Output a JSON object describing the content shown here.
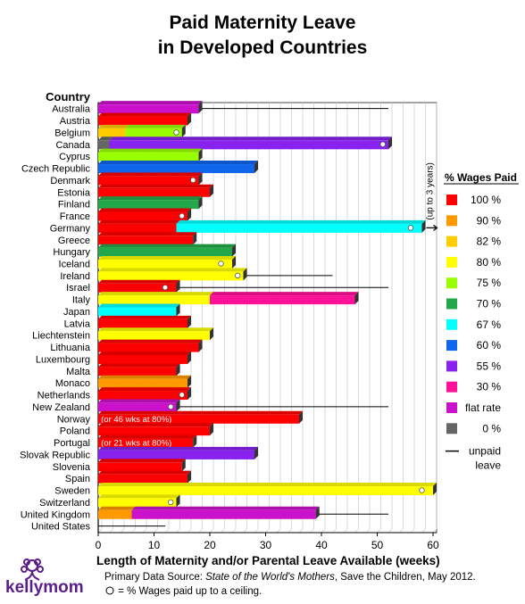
{
  "chart_data": {
    "type": "bar",
    "title_lines": [
      "Paid Maternity Leave",
      "in Developed Countries"
    ],
    "country_header": "Country",
    "xlabel": "Length of Maternity and/or Parental Leave Available (weeks)",
    "xlim": [
      0,
      60
    ],
    "xticks": [
      0,
      10,
      20,
      30,
      40,
      50,
      60
    ],
    "grid": true,
    "legend_position": "right",
    "legend_title": "% Wages Paid",
    "legend": [
      {
        "label": "100 %",
        "color": "#ff0000"
      },
      {
        "label": "90 %",
        "color": "#ff9900"
      },
      {
        "label": "82 %",
        "color": "#ffcc00"
      },
      {
        "label": "80 %",
        "color": "#ffff00"
      },
      {
        "label": "75 %",
        "color": "#99ff00"
      },
      {
        "label": "70 %",
        "color": "#22a84a"
      },
      {
        "label": "67 %",
        "color": "#00ffff"
      },
      {
        "label": "60 %",
        "color": "#1166ee"
      },
      {
        "label": "55 %",
        "color": "#8822ee"
      },
      {
        "label": "30 %",
        "color": "#ff1199"
      },
      {
        "label": "flat rate",
        "color": "#cc11cc"
      },
      {
        "label": "0 %",
        "color": "#666666"
      }
    ],
    "unpaid_label": [
      "unpaid",
      "leave"
    ],
    "annotations": {
      "germany_note": "(up to 3 years)"
    },
    "countries": [
      {
        "name": "Australia",
        "segments": [
          {
            "weeks": 18,
            "color": "#cc11cc"
          }
        ],
        "unpaid_to": 52
      },
      {
        "name": "Austria",
        "segments": [
          {
            "weeks": 16,
            "color": "#ff0000"
          }
        ]
      },
      {
        "name": "Belgium",
        "segments": [
          {
            "weeks": 4.9,
            "color": "#ffcc00"
          },
          {
            "weeks": 10.1,
            "color": "#99ff00"
          }
        ],
        "ceiling": 14
      },
      {
        "name": "Canada",
        "segments": [
          {
            "weeks": 2,
            "color": "#666666"
          },
          {
            "weeks": 50,
            "color": "#8822ee"
          }
        ],
        "ceiling": 51
      },
      {
        "name": "Cyprus",
        "segments": [
          {
            "weeks": 18,
            "color": "#99ff00"
          }
        ]
      },
      {
        "name": "Czech Republic",
        "segments": [
          {
            "weeks": 28,
            "color": "#1166ee"
          }
        ]
      },
      {
        "name": "Denmark",
        "segments": [
          {
            "weeks": 18,
            "color": "#ff0000"
          }
        ],
        "ceiling": 17
      },
      {
        "name": "Estonia",
        "segments": [
          {
            "weeks": 20,
            "color": "#ff0000"
          }
        ]
      },
      {
        "name": "Finland",
        "segments": [
          {
            "weeks": 18,
            "color": "#22a84a"
          }
        ]
      },
      {
        "name": "France",
        "segments": [
          {
            "weeks": 16,
            "color": "#ff0000"
          }
        ],
        "ceiling": 15
      },
      {
        "name": "Germany",
        "segments": [
          {
            "weeks": 14,
            "color": "#ff0000"
          },
          {
            "weeks": 44,
            "color": "#00ffff"
          }
        ],
        "ceiling": 56,
        "arrow": true
      },
      {
        "name": "Greece",
        "segments": [
          {
            "weeks": 17,
            "color": "#ff0000"
          }
        ]
      },
      {
        "name": "Hungary",
        "segments": [
          {
            "weeks": 24,
            "color": "#22a84a"
          }
        ]
      },
      {
        "name": "Iceland",
        "segments": [
          {
            "weeks": 24,
            "color": "#ffff00"
          }
        ],
        "ceiling": 22
      },
      {
        "name": "Ireland",
        "segments": [
          {
            "weeks": 26,
            "color": "#ffff00"
          }
        ],
        "ceiling": 25,
        "unpaid_to": 42
      },
      {
        "name": "Israel",
        "segments": [
          {
            "weeks": 14,
            "color": "#ff0000"
          }
        ],
        "ceiling": 12,
        "unpaid_to": 52
      },
      {
        "name": "Italy",
        "segments": [
          {
            "weeks": 20,
            "color": "#ffff00"
          },
          {
            "weeks": 26,
            "color": "#ff1199"
          }
        ]
      },
      {
        "name": "Japan",
        "segments": [
          {
            "weeks": 14,
            "color": "#00ffff"
          }
        ]
      },
      {
        "name": "Latvia",
        "segments": [
          {
            "weeks": 16,
            "color": "#ff0000"
          }
        ]
      },
      {
        "name": "Liechtenstein",
        "segments": [
          {
            "weeks": 20,
            "color": "#ffff00"
          }
        ]
      },
      {
        "name": "Lithuania",
        "segments": [
          {
            "weeks": 18,
            "color": "#ff0000"
          }
        ]
      },
      {
        "name": "Luxembourg",
        "segments": [
          {
            "weeks": 16,
            "color": "#ff0000"
          }
        ]
      },
      {
        "name": "Malta",
        "segments": [
          {
            "weeks": 14,
            "color": "#ff0000"
          }
        ]
      },
      {
        "name": "Monaco",
        "segments": [
          {
            "weeks": 16,
            "color": "#ff9900"
          }
        ]
      },
      {
        "name": "Netherlands",
        "segments": [
          {
            "weeks": 16,
            "color": "#ff0000"
          }
        ],
        "ceiling": 15
      },
      {
        "name": "New Zealand",
        "segments": [
          {
            "weeks": 14,
            "color": "#cc11cc"
          }
        ],
        "ceiling": 13,
        "unpaid_to": 52
      },
      {
        "name": "Norway",
        "segments": [
          {
            "weeks": 36,
            "color": "#ff0000"
          }
        ],
        "bar_note": "(or 46 wks at 80%)"
      },
      {
        "name": "Poland",
        "segments": [
          {
            "weeks": 20,
            "color": "#ff0000"
          }
        ]
      },
      {
        "name": "Portugal",
        "segments": [
          {
            "weeks": 17,
            "color": "#ff0000"
          }
        ],
        "bar_note": "(or 21 wks at 80%)"
      },
      {
        "name": "Slovak Republic",
        "segments": [
          {
            "weeks": 28,
            "color": "#8822ee"
          }
        ]
      },
      {
        "name": "Slovenia",
        "segments": [
          {
            "weeks": 15,
            "color": "#ff0000"
          }
        ]
      },
      {
        "name": "Spain",
        "segments": [
          {
            "weeks": 16,
            "color": "#ff0000"
          }
        ]
      },
      {
        "name": "Sweden",
        "segments": [
          {
            "weeks": 60,
            "color": "#ffff00"
          }
        ],
        "ceiling": 58
      },
      {
        "name": "Switzerland",
        "segments": [
          {
            "weeks": 14,
            "color": "#ffff00"
          }
        ],
        "ceiling": 13
      },
      {
        "name": "United Kingdom",
        "segments": [
          {
            "weeks": 6,
            "color": "#ff9900"
          },
          {
            "weeks": 33,
            "color": "#cc11cc"
          }
        ],
        "unpaid_to": 52
      },
      {
        "name": "United States",
        "segments": [],
        "unpaid_to": 12
      }
    ]
  },
  "footer": {
    "source_prefix": "Primary Data Source: ",
    "source_title": "State of the World's Mothers",
    "source_suffix": ", Save the Children, May 2012.",
    "ceiling_note": "= % Wages paid up to a ceiling."
  },
  "logo_text": "kellymom"
}
